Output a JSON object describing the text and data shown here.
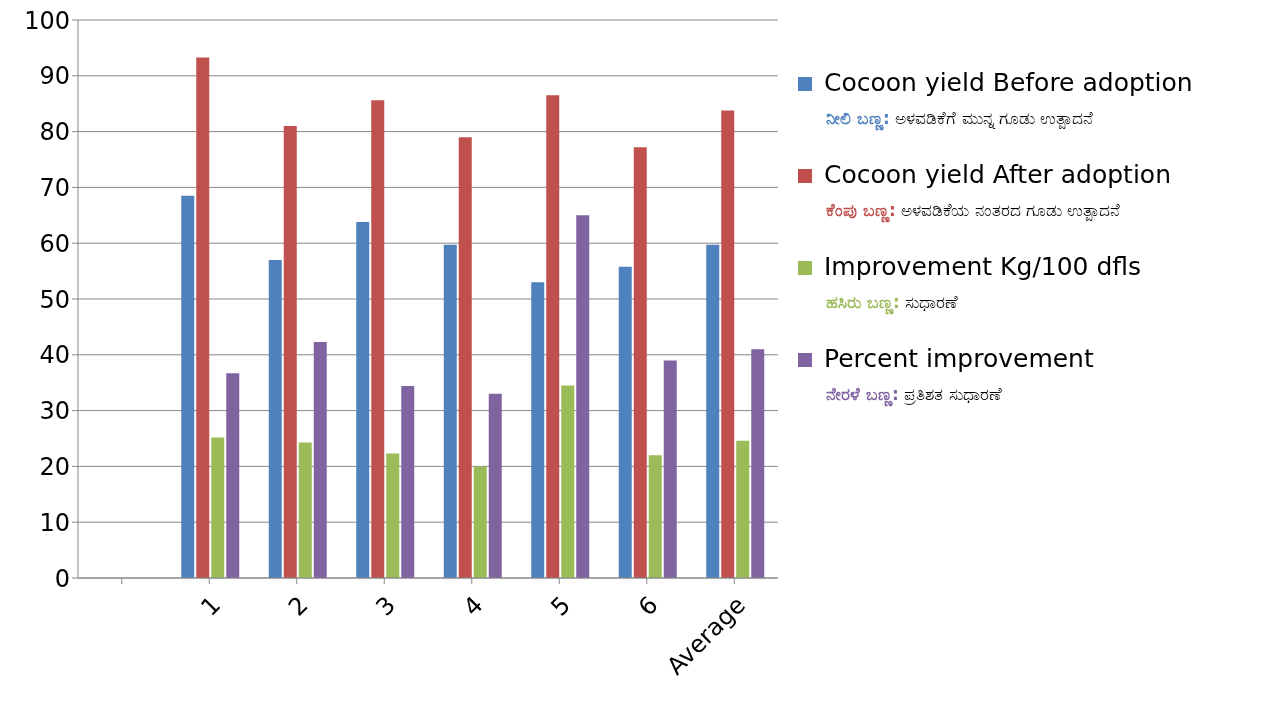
{
  "chart_data": {
    "type": "bar",
    "categories": [
      null,
      "1",
      "2",
      "3",
      "4",
      "5",
      "6",
      "Average"
    ],
    "series": [
      {
        "name": "Cocoon yield Before adoption",
        "color": "#4f81bd",
        "values": [
          0,
          68.5,
          57,
          63.8,
          59.7,
          53,
          55.8,
          59.7
        ]
      },
      {
        "name": "Cocoon yield After adoption",
        "color": "#c0504d",
        "values": [
          0,
          93.3,
          81,
          85.6,
          79,
          86.5,
          77.2,
          83.8
        ]
      },
      {
        "name": "Improvement Kg/100 dfls",
        "color": "#9bbb59",
        "values": [
          0,
          25.2,
          24.3,
          22.3,
          20,
          34.5,
          22,
          24.6
        ]
      },
      {
        "name": "Percent  improvement",
        "color": "#8064a2",
        "values": [
          0,
          36.7,
          42.3,
          34.4,
          33,
          65,
          39,
          41
        ]
      }
    ],
    "annotations": [
      "ನೀಲಿ ಬಣ್ಣ: ಅಳವಡಿಕೆಗೆ  ಮುನ್ನ ಗೂಡು ಉತ್ಪಾದನೆ",
      "ಕೆಂಪು ಬಣ್ಣ: ಅಳವಡಿಕೆಯ ನಂತರದ ಗೂಡು ಉತ್ಪಾದನೆ",
      "ಹಸಿರು ಬಣ್ಣ: ಸುಧಾರಣೆ",
      "ನೇರಳೆ ಬಣ್ಣ: ಪ್ರತಿಶತ ಸುಧಾರಣೆ"
    ],
    "ylim": [
      0,
      100
    ],
    "yticks": [
      0,
      10,
      20,
      30,
      40,
      50,
      60,
      70,
      80,
      90,
      100
    ],
    "grid": "y",
    "legend": "right"
  }
}
